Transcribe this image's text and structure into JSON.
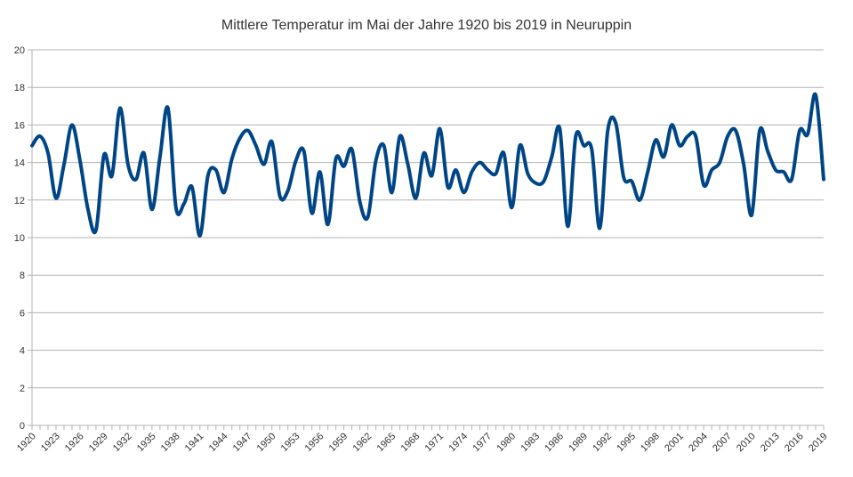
{
  "chart_data": {
    "type": "line",
    "title": "Mittlere Temperatur im Mai der Jahre 1920 bis 2019 in Neuruppin",
    "xlabel": "",
    "ylabel": "",
    "ylim": [
      0,
      20
    ],
    "yticks": [
      0,
      2,
      4,
      6,
      8,
      10,
      12,
      14,
      16,
      18,
      20
    ],
    "x_tick_labels": [
      "1920",
      "1923",
      "1926",
      "1929",
      "1932",
      "1935",
      "1938",
      "1941",
      "1944",
      "1947",
      "1950",
      "1953",
      "1956",
      "1959",
      "1962",
      "1965",
      "1968",
      "1971",
      "1974",
      "1977",
      "1980",
      "1983",
      "1986",
      "1989",
      "1992",
      "1995",
      "1998",
      "2001",
      "2004",
      "2007",
      "2010",
      "2013",
      "2016",
      "2019"
    ],
    "grid": "horizontal",
    "legend": "none",
    "color": "#004586",
    "x": [
      1920,
      1921,
      1922,
      1923,
      1924,
      1925,
      1926,
      1927,
      1928,
      1929,
      1930,
      1931,
      1932,
      1933,
      1934,
      1935,
      1936,
      1937,
      1938,
      1939,
      1940,
      1941,
      1942,
      1943,
      1944,
      1945,
      1946,
      1947,
      1948,
      1949,
      1950,
      1951,
      1952,
      1953,
      1954,
      1955,
      1956,
      1957,
      1958,
      1959,
      1960,
      1961,
      1962,
      1963,
      1964,
      1965,
      1966,
      1967,
      1968,
      1969,
      1970,
      1971,
      1972,
      1973,
      1974,
      1975,
      1976,
      1977,
      1978,
      1979,
      1980,
      1981,
      1982,
      1983,
      1984,
      1985,
      1986,
      1987,
      1988,
      1989,
      1990,
      1991,
      1992,
      1993,
      1994,
      1995,
      1996,
      1997,
      1998,
      1999,
      2000,
      2001,
      2002,
      2003,
      2004,
      2005,
      2006,
      2007,
      2008,
      2009,
      2010,
      2011,
      2012,
      2013,
      2014,
      2015,
      2016,
      2017,
      2018,
      2019
    ],
    "values": [
      14.9,
      15.4,
      14.5,
      12.1,
      13.9,
      16.0,
      14.1,
      11.5,
      10.4,
      14.4,
      13.3,
      16.9,
      13.9,
      13.1,
      14.5,
      11.5,
      14.3,
      16.9,
      11.6,
      11.8,
      12.7,
      10.1,
      13.3,
      13.6,
      12.4,
      14.2,
      15.3,
      15.7,
      14.9,
      13.9,
      15.1,
      12.2,
      12.5,
      14.1,
      14.6,
      11.3,
      13.5,
      10.7,
      14.2,
      13.8,
      14.7,
      11.9,
      11.1,
      14.1,
      14.9,
      12.4,
      15.4,
      13.9,
      12.1,
      14.5,
      13.3,
      15.8,
      12.7,
      13.6,
      12.4,
      13.5,
      14.0,
      13.6,
      13.4,
      14.5,
      11.6,
      14.9,
      13.4,
      12.9,
      13.0,
      14.3,
      15.8,
      10.6,
      15.4,
      14.9,
      14.7,
      10.5,
      15.7,
      16.1,
      13.2,
      13.0,
      12.0,
      13.5,
      15.2,
      14.3,
      16.0,
      14.9,
      15.4,
      15.4,
      12.8,
      13.6,
      14.0,
      15.4,
      15.7,
      13.9,
      11.2,
      15.7,
      14.6,
      13.6,
      13.5,
      13.1,
      15.7,
      15.5,
      17.6,
      13.1
    ]
  }
}
